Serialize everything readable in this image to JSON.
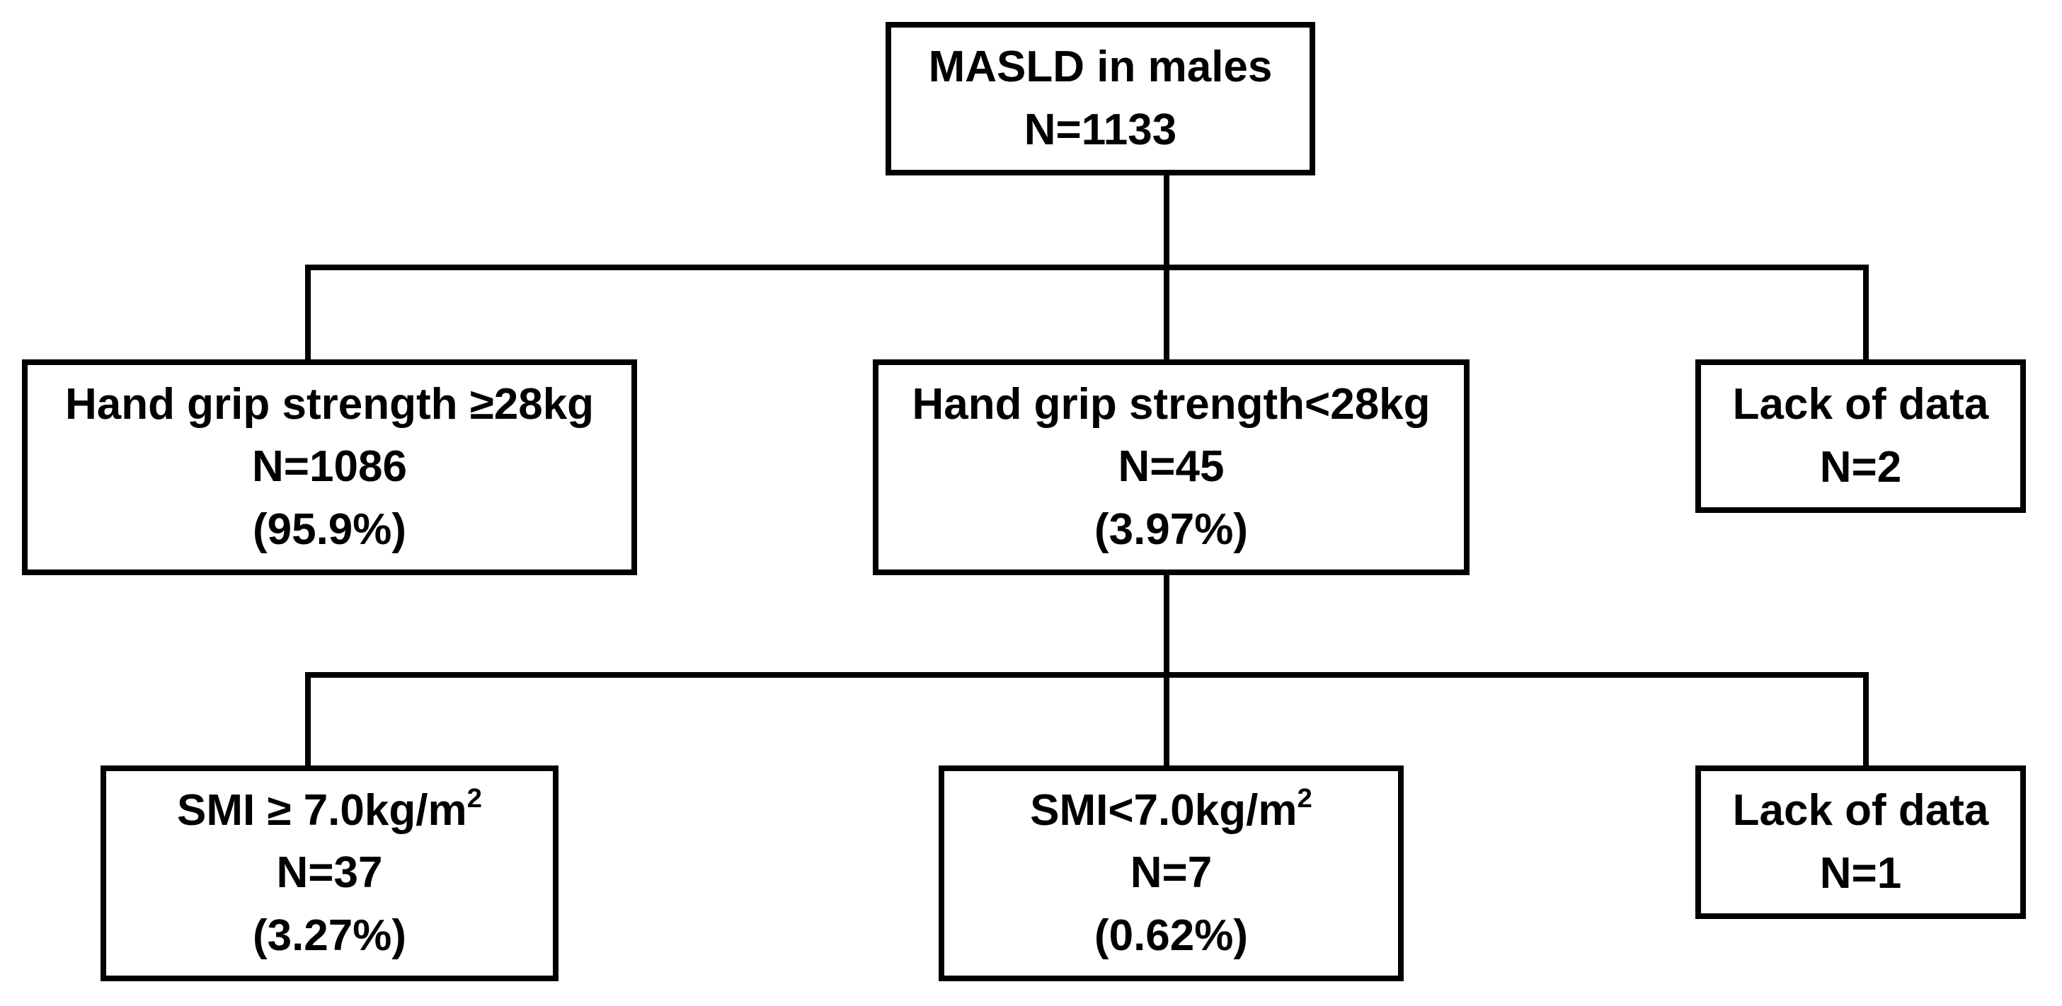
{
  "root": {
    "title": "MASLD in males",
    "n": "N=1133"
  },
  "level1": {
    "hgs_high": {
      "title": "Hand grip strength ≥28kg",
      "n": "N=1086",
      "pct": "(95.9%)"
    },
    "hgs_low": {
      "title": "Hand grip strength<28kg",
      "n": "N=45",
      "pct": "(3.97%)"
    },
    "lack": {
      "title": "Lack of data",
      "n": "N=2"
    }
  },
  "level2": {
    "smi_high": {
      "title": "SMI ≥ 7.0kg/m",
      "title_sup": "2",
      "n": "N=37",
      "pct": "(3.27%)"
    },
    "smi_low": {
      "title": "SMI<7.0kg/m",
      "title_sup": "2",
      "n": "N=7",
      "pct": "(0.62%)"
    },
    "lack": {
      "title": "Lack of data",
      "n": "N=1"
    }
  }
}
